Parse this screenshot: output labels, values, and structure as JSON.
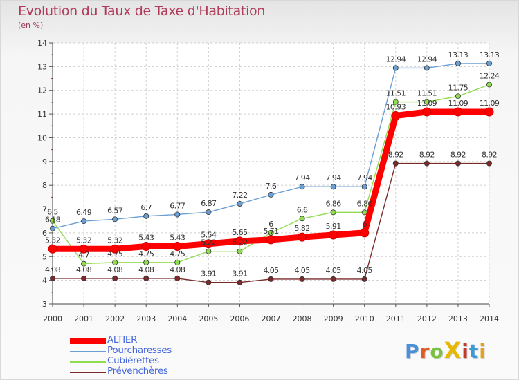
{
  "header": {
    "title": "Evolution du Taux de Taxe d'Habitation",
    "subtitle": "(en %)"
  },
  "brand": {
    "name": "ProXiti",
    "colors": [
      "#4a90d9",
      "#e05a2a",
      "#7ac143",
      "#e6b800",
      "#c0392b",
      "#3c9bd6",
      "#e2a21f"
    ]
  },
  "chart_data": {
    "type": "line",
    "title": "Evolution du Taux de Taxe d'Habitation",
    "subtitle": "(en %)",
    "xlabel": "",
    "ylabel": "",
    "x": [
      "2000",
      "2001",
      "2002",
      "2003",
      "2004",
      "2005",
      "2006",
      "2007",
      "2008",
      "2009",
      "2010",
      "2011",
      "2012",
      "2013",
      "2014"
    ],
    "ylim": [
      3,
      14
    ],
    "yticks": [
      "3",
      "4",
      "5",
      "6",
      "7",
      "8",
      "9",
      "10",
      "11",
      "12",
      "13",
      "14"
    ],
    "grid": true,
    "legend_position": "bottom-left",
    "series": [
      {
        "name": "ALTIER",
        "color": "#ff0000",
        "label_color": "#ff0000",
        "values": [
          5.32,
          5.32,
          5.32,
          5.43,
          5.43,
          5.54,
          5.65,
          5.71,
          5.82,
          5.91,
          6,
          10.93,
          11.09,
          11.09,
          11.09
        ],
        "labels": [
          "5.32",
          "5.32",
          "5.32",
          "5.43",
          "5.43",
          "5.54",
          "5.65",
          "5.71",
          "5.82",
          "5.91",
          "6",
          "10.93",
          "11.09",
          "11.09",
          "11.09"
        ]
      },
      {
        "name": "Pourcharesses",
        "color": "#6a9fd4",
        "label_color": "#4472b8",
        "values": [
          6.18,
          6.49,
          6.57,
          6.7,
          6.77,
          6.87,
          7.22,
          7.6,
          7.94,
          7.94,
          7.94,
          12.94,
          12.94,
          13.13,
          13.13
        ],
        "labels": [
          "6.18",
          "6.49",
          "6.57",
          "6.7",
          "6.77",
          "6.87",
          "7.22",
          "7.6",
          "7.94",
          "7.94",
          "7.94",
          "12.94",
          "12.94",
          "13.13",
          "13.13"
        ]
      },
      {
        "name": "Cubiérettes",
        "color": "#90dc50",
        "label_color": "#5aa82e",
        "values": [
          6.5,
          4.7,
          4.75,
          4.75,
          4.75,
          5.22,
          5.22,
          6,
          6.6,
          6.86,
          6.86,
          11.51,
          11.51,
          11.75,
          12.24
        ],
        "labels": [
          "6.5",
          "4.7",
          "4.75",
          "4.75",
          "4.75",
          "5.22",
          "5.22",
          "6",
          "6.6",
          "6.86",
          "6.86",
          "11.51",
          "11.51",
          "11.75",
          "12.24"
        ]
      },
      {
        "name": "Prévenchères",
        "color": "#7a2a2a",
        "label_color": "#5a1a1a",
        "values": [
          4.08,
          4.08,
          4.08,
          4.08,
          4.08,
          3.91,
          3.91,
          4.05,
          4.05,
          4.05,
          4.05,
          8.92,
          8.92,
          8.92,
          8.92
        ],
        "labels": [
          "4.08",
          "4.08",
          "4.08",
          "4.08",
          "4.08",
          "3.91",
          "3.91",
          "4.05",
          "4.05",
          "4.05",
          "4.05",
          "8.92",
          "8.92",
          "8.92",
          "8.92"
        ]
      }
    ]
  },
  "legend": {
    "items": [
      {
        "label": "ALTIER",
        "color": "#ff0000",
        "text_color": "#4466dd",
        "thick": true
      },
      {
        "label": "Pourcharesses",
        "color": "#6a9fd4",
        "text_color": "#4466dd",
        "thick": false
      },
      {
        "label": "Cubiérettes",
        "color": "#90dc50",
        "text_color": "#4466dd",
        "thick": false
      },
      {
        "label": "Prévenchères",
        "color": "#7a2a2a",
        "text_color": "#4466dd",
        "thick": false
      }
    ]
  }
}
